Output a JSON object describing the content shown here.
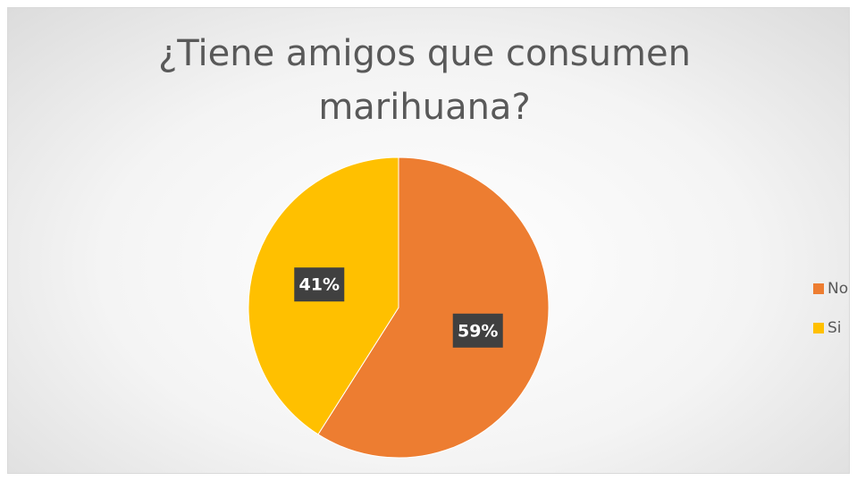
{
  "chart_data": {
    "type": "pie",
    "title": "¿Tiene amigos que consumen marihuana?",
    "categories": [
      "No",
      "Si"
    ],
    "values": [
      59,
      41
    ],
    "value_labels": [
      "59%",
      "41%"
    ],
    "colors": [
      "#ED7D31",
      "#FFC000"
    ],
    "legend": "right"
  }
}
